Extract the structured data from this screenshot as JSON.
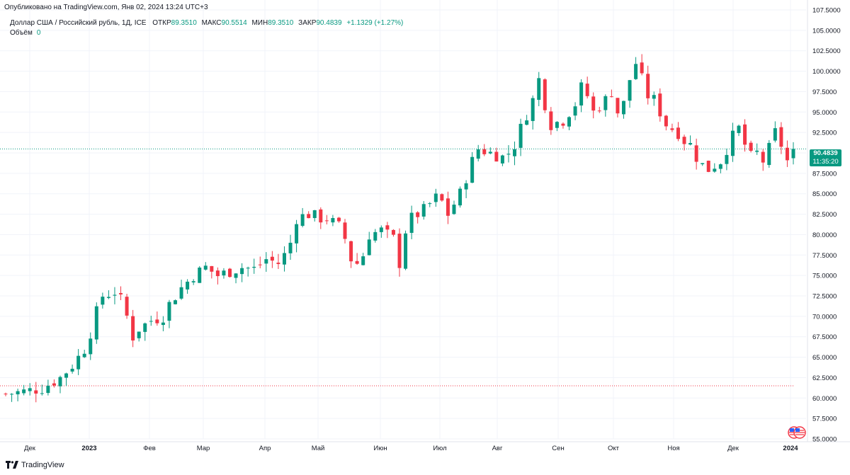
{
  "header": {
    "published": "Опубликовано на TradingView.com, Янв 02, 2024 13:24 UTC+3"
  },
  "legend": {
    "symbol": "Доллар США / Российский рубль, 1Д, ICE",
    "open_label": "ОТКР",
    "open": "89.3510",
    "high_label": "МАКС",
    "high": "90.5514",
    "low_label": "МИН",
    "low": "89.3510",
    "close_label": "ЗАКР",
    "close": "90.4839",
    "change": "+1.1329 (+1.27%)",
    "volume_label": "Объём",
    "volume": "0"
  },
  "price_tag": {
    "price": "90.4839",
    "countdown": "11:35:20"
  },
  "footer": {
    "brand": "TradingView"
  },
  "colors": {
    "up": "#089981",
    "down": "#f23645",
    "grid": "#f0f3fa",
    "axis_text": "#131722"
  },
  "chart_data": {
    "type": "candlestick",
    "title": "",
    "ylim": [
      55,
      107.5
    ],
    "y_ticks": [
      "107.5000",
      "105.0000",
      "102.5000",
      "100.0000",
      "97.5000",
      "95.0000",
      "92.5000",
      "90.0000",
      "87.5000",
      "85.0000",
      "82.5000",
      "80.0000",
      "77.5000",
      "75.0000",
      "72.5000",
      "70.0000",
      "67.5000",
      "65.0000",
      "62.5000",
      "60.0000",
      "57.5000",
      "55.0000"
    ],
    "x_ticks": [
      "Дек",
      "2023",
      "Фев",
      "Мар",
      "Апр",
      "Май",
      "Июн",
      "Июл",
      "Авг",
      "Сен",
      "Окт",
      "Ноя",
      "Дек",
      "2024"
    ],
    "current_price_line": 90.4839,
    "reference_line": 61.5,
    "close_path": [
      [
        0,
        60.5
      ],
      [
        3,
        60.8
      ],
      [
        6,
        61.2
      ],
      [
        9,
        62.5
      ],
      [
        11,
        64
      ],
      [
        13,
        66
      ],
      [
        14,
        68
      ],
      [
        15,
        70.5
      ],
      [
        16,
        72.5
      ],
      [
        18,
        73
      ],
      [
        19,
        72
      ],
      [
        20,
        70
      ],
      [
        21,
        67.5
      ],
      [
        22,
        68.5
      ],
      [
        24,
        69.5
      ],
      [
        26,
        70
      ],
      [
        27,
        71.5
      ],
      [
        29,
        73.5
      ],
      [
        31,
        75
      ],
      [
        33,
        76
      ],
      [
        35,
        75
      ],
      [
        37,
        75.5
      ],
      [
        39,
        76
      ],
      [
        41,
        75.8
      ],
      [
        43,
        77
      ],
      [
        45,
        76.5
      ],
      [
        46,
        77.5
      ],
      [
        47,
        79
      ],
      [
        48,
        82
      ],
      [
        50,
        82.5
      ],
      [
        52,
        82
      ],
      [
        53,
        82
      ],
      [
        55,
        81
      ],
      [
        56,
        79.5
      ],
      [
        57,
        77
      ],
      [
        58,
        76.5
      ],
      [
        59,
        77.5
      ],
      [
        60,
        80
      ],
      [
        62,
        80.5
      ],
      [
        63,
        80
      ],
      [
        64,
        79.5
      ],
      [
        65,
        76.5
      ],
      [
        66,
        80.5
      ],
      [
        67,
        82
      ],
      [
        69,
        83
      ],
      [
        71,
        84.5
      ],
      [
        72,
        84
      ],
      [
        73,
        82.5
      ],
      [
        75,
        85
      ],
      [
        76,
        87
      ],
      [
        77,
        89
      ],
      [
        78,
        90.5
      ],
      [
        80,
        90
      ],
      [
        82,
        89.5
      ],
      [
        83,
        90
      ],
      [
        84,
        91
      ],
      [
        85,
        93
      ],
      [
        87,
        96.5
      ],
      [
        88,
        99
      ],
      [
        89,
        96
      ],
      [
        90,
        93.5
      ],
      [
        92,
        94
      ],
      [
        94,
        96
      ],
      [
        95,
        98
      ],
      [
        96,
        97
      ],
      [
        97,
        95
      ],
      [
        99,
        96.5
      ],
      [
        100,
        97.5
      ],
      [
        101,
        95
      ],
      [
        102,
        96
      ],
      [
        103,
        99
      ],
      [
        104,
        101
      ],
      [
        105,
        99
      ],
      [
        106,
        97
      ],
      [
        107,
        96.5
      ],
      [
        108,
        95
      ],
      [
        109,
        93.5
      ],
      [
        111,
        92.5
      ],
      [
        112,
        91.5
      ],
      [
        113,
        91
      ],
      [
        114,
        89.5
      ],
      [
        115,
        88.5
      ],
      [
        116,
        88
      ],
      [
        117,
        88.5
      ],
      [
        118,
        89
      ],
      [
        119,
        90.5
      ],
      [
        120,
        92
      ],
      [
        121,
        93
      ],
      [
        122,
        91
      ],
      [
        123,
        89.5
      ],
      [
        124,
        90
      ],
      [
        125,
        89
      ],
      [
        126,
        90.5
      ],
      [
        127,
        92.5
      ],
      [
        128,
        91
      ],
      [
        129,
        89
      ],
      [
        130,
        90.5
      ]
    ],
    "candle_count": 131,
    "note_source": ""
  }
}
